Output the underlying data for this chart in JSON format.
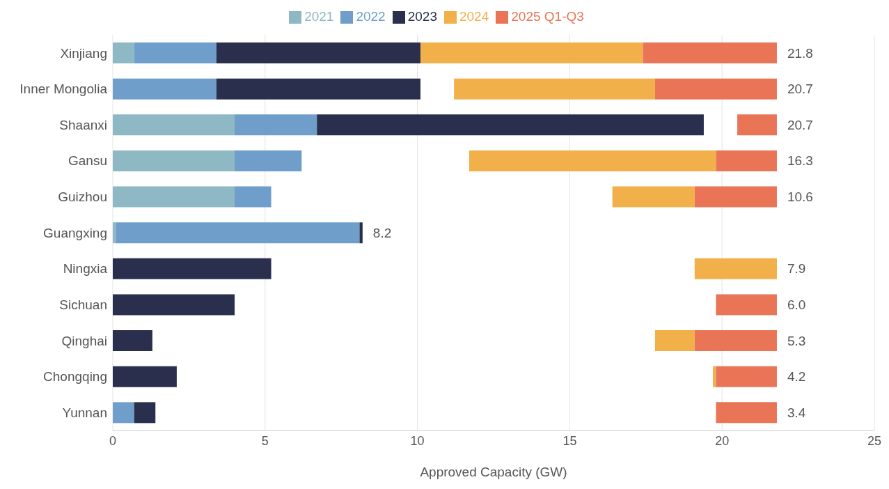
{
  "chart_data": {
    "type": "bar",
    "orientation": "horizontal",
    "xlabel": "Approved Capacity (GW)",
    "categories": [
      "Xinjiang",
      "Inner Mongolia",
      "Shaanxi",
      "Gansu",
      "Guizhou",
      "Guangxing",
      "Ningxia",
      "Sichuan",
      "Qinghai",
      "Chongqing",
      "Yunnan"
    ],
    "series": [
      {
        "name": "2021",
        "color": "#8db8c4",
        "values": [
          0.7,
          null,
          4.0,
          4.0,
          4.0,
          0.1,
          null,
          null,
          null,
          null,
          null
        ],
        "base": [
          0,
          null,
          0,
          0,
          0,
          0,
          null,
          null,
          null,
          null,
          null
        ]
      },
      {
        "name": "2022",
        "color": "#6f9ecb",
        "values": [
          2.7,
          3.4,
          2.7,
          2.2,
          1.2,
          8.0,
          null,
          null,
          null,
          null,
          0.7
        ],
        "base": [
          0.7,
          0,
          4.0,
          4.0,
          4.0,
          0.1,
          null,
          null,
          null,
          null,
          0
        ]
      },
      {
        "name": "2023",
        "color": "#2a2f4d",
        "values": [
          6.7,
          6.7,
          12.7,
          null,
          null,
          0.1,
          5.2,
          4.0,
          1.3,
          2.1,
          0.7
        ],
        "base": [
          3.4,
          3.4,
          6.7,
          null,
          null,
          8.1,
          0,
          0,
          0,
          0,
          0.7
        ]
      },
      {
        "name": "2024",
        "color": "#f2b04b",
        "values": [
          7.3,
          6.6,
          null,
          8.1,
          2.7,
          null,
          2.7,
          null,
          1.3,
          0.1,
          null
        ],
        "base": [
          10.1,
          11.2,
          null,
          11.7,
          16.4,
          null,
          19.1,
          null,
          17.8,
          19.7,
          null
        ]
      },
      {
        "name": "2025 Q1-Q3",
        "color": "#e97556",
        "values": [
          4.4,
          4.0,
          1.3,
          2.0,
          2.7,
          null,
          null,
          2.0,
          2.7,
          2.0,
          2.0
        ],
        "base": [
          17.4,
          17.8,
          20.5,
          19.8,
          19.1,
          null,
          null,
          19.8,
          19.1,
          19.8,
          19.8
        ]
      }
    ],
    "totals": [
      "21.8",
      "20.7",
      "20.7",
      "16.3",
      "10.6",
      "8.2",
      "7.9",
      "6.0",
      "5.3",
      "4.2",
      "3.4"
    ],
    "xlim": [
      0,
      25
    ],
    "xticks": [
      0,
      5,
      10,
      15,
      20,
      25
    ],
    "grid": "x",
    "legend": "top"
  }
}
